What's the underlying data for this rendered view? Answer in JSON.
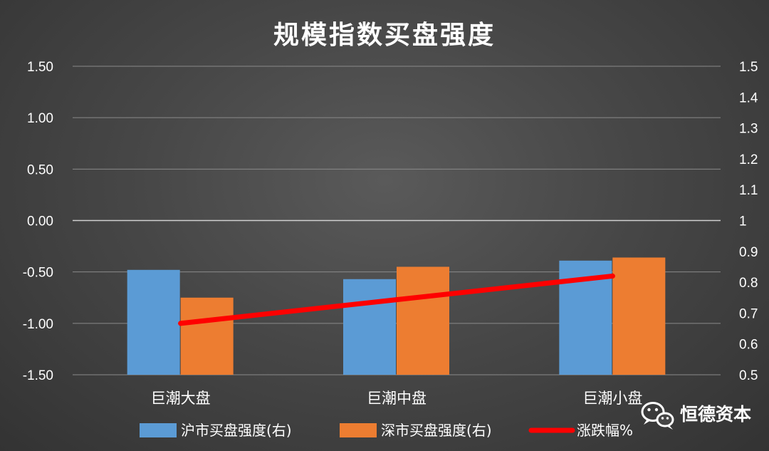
{
  "chart_data": {
    "type": "bar",
    "title": "规模指数买盘强度",
    "categories": [
      "巨潮大盘",
      "巨潮中盘",
      "巨潮小盘"
    ],
    "left_axis": {
      "ylim": [
        -1.5,
        1.5
      ],
      "ticks": [
        1.5,
        1.0,
        0.5,
        0.0,
        -0.5,
        -1.0,
        -1.5
      ],
      "tick_labels": [
        "1.50",
        "1.00",
        "0.50",
        "0.00",
        "-0.50",
        "-1.00",
        "-1.50"
      ]
    },
    "right_axis": {
      "ylim": [
        0.5,
        1.5
      ],
      "ticks": [
        1.5,
        1.4,
        1.3,
        1.2,
        1.1,
        1,
        0.9,
        0.8,
        0.7,
        0.6,
        0.5
      ],
      "tick_labels": [
        "1.5",
        "1.4",
        "1.3",
        "1.2",
        "1.1",
        "1",
        "0.9",
        "0.8",
        "0.7",
        "0.6",
        "0.5"
      ]
    },
    "series": [
      {
        "name": "沪市买盘强度(右)",
        "type": "bar",
        "axis": "right",
        "color": "#5b9bd5",
        "values": [
          0.84,
          0.81,
          0.87
        ]
      },
      {
        "name": "深市买盘强度(右)",
        "type": "bar",
        "axis": "right",
        "color": "#ed7d31",
        "values": [
          0.75,
          0.85,
          0.88
        ]
      },
      {
        "name": "涨跌幅%",
        "type": "line",
        "axis": "left",
        "color": "#ff0000",
        "values": [
          -1.0,
          -0.77,
          -0.54
        ]
      }
    ],
    "grid": true,
    "legend_position": "bottom"
  },
  "watermark": {
    "icon": "wechat-icon",
    "text": "恒德资本"
  }
}
